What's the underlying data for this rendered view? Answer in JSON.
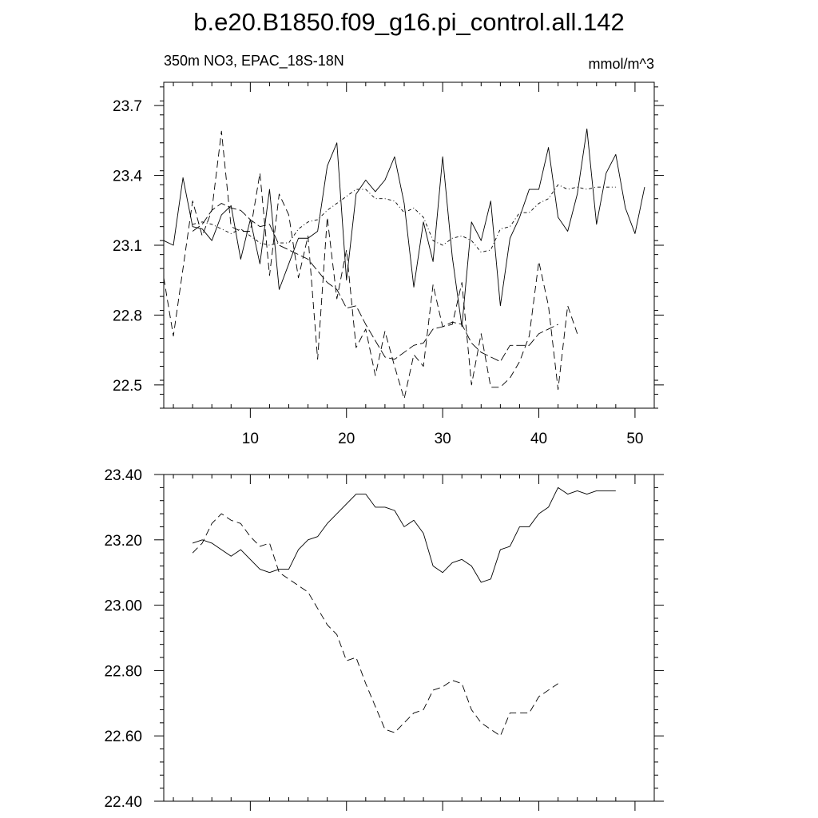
{
  "title": "b.e20.B1850.f09_g16.pi_control.all.142",
  "chart_data": [
    {
      "type": "line",
      "left_subtitle": "350m NO3, EPAC_18S-18N",
      "right_subtitle": "mmol/m^3",
      "xlim": [
        1,
        52
      ],
      "ylim": [
        22.4,
        23.8
      ],
      "xticks": [
        10,
        20,
        30,
        40,
        50
      ],
      "xtick_labels": [
        "10",
        "20",
        "30",
        "40",
        "50"
      ],
      "yticks": [
        22.5,
        22.8,
        23.1,
        23.4,
        23.7
      ],
      "ytick_labels": [
        "22.5",
        "22.8",
        "23.1",
        "23.4",
        "23.7"
      ],
      "series": [
        {
          "style": "solid",
          "x": [
            1,
            2,
            3,
            4,
            5,
            6,
            7,
            8,
            9,
            10,
            11,
            12,
            13,
            14,
            15,
            16,
            17,
            18,
            19,
            20,
            21,
            22,
            23,
            24,
            25,
            26,
            27,
            28,
            29,
            30,
            31,
            32,
            33,
            34,
            35,
            36,
            37,
            38,
            39,
            40,
            41,
            42,
            43,
            44,
            45,
            46,
            47,
            48,
            49,
            50,
            51
          ],
          "y": [
            23.12,
            23.1,
            23.39,
            23.18,
            23.17,
            23.12,
            23.23,
            23.27,
            23.04,
            23.21,
            23.02,
            23.34,
            22.91,
            23.02,
            23.13,
            23.13,
            23.16,
            23.44,
            23.54,
            22.95,
            23.32,
            23.38,
            23.33,
            23.38,
            23.48,
            23.28,
            22.92,
            23.2,
            23.03,
            23.48,
            23.05,
            22.75,
            23.2,
            23.12,
            23.29,
            22.84,
            23.13,
            23.22,
            23.34,
            23.34,
            23.52,
            23.22,
            23.16,
            23.32,
            23.6,
            23.19,
            23.41,
            23.49,
            23.26,
            23.15,
            23.35
          ]
        },
        {
          "style": "dashed",
          "x": [
            1,
            2,
            3,
            4,
            5,
            6,
            7,
            8,
            9,
            10,
            11,
            12,
            13,
            14,
            15,
            16,
            17,
            18,
            19,
            20,
            21,
            22,
            23,
            24,
            25,
            26,
            27,
            28,
            29,
            30,
            31,
            32,
            33,
            34,
            35,
            36,
            37,
            38,
            39,
            40,
            41,
            42,
            43,
            44
          ],
          "y": [
            22.96,
            22.71,
            23.0,
            23.29,
            23.14,
            23.25,
            23.59,
            23.18,
            23.16,
            23.16,
            23.41,
            22.97,
            23.32,
            23.23,
            22.96,
            23.14,
            22.61,
            23.22,
            22.87,
            23.08,
            22.66,
            22.74,
            22.54,
            22.73,
            22.58,
            22.44,
            22.63,
            22.58,
            22.93,
            22.75,
            22.76,
            22.94,
            22.5,
            22.72,
            22.49,
            22.49,
            22.53,
            22.6,
            22.71,
            23.03,
            22.84,
            22.48,
            22.84,
            22.72
          ]
        },
        {
          "style": "dash-dot",
          "x": [
            4,
            5,
            6,
            7,
            8,
            9,
            10,
            11,
            12,
            13,
            14,
            15,
            16,
            17,
            18,
            19,
            20,
            21,
            22,
            23,
            24,
            25,
            26,
            27,
            28,
            29,
            30,
            31,
            32,
            33,
            34,
            35,
            36,
            37,
            38,
            39,
            40,
            41,
            42,
            43,
            44,
            45,
            46,
            47,
            48
          ],
          "y": [
            23.19,
            23.2,
            23.19,
            23.17,
            23.15,
            23.17,
            23.14,
            23.11,
            23.1,
            23.11,
            23.11,
            23.17,
            23.2,
            23.21,
            23.25,
            23.28,
            23.31,
            23.34,
            23.34,
            23.3,
            23.3,
            23.29,
            23.24,
            23.26,
            23.22,
            23.12,
            23.1,
            23.13,
            23.14,
            23.12,
            23.07,
            23.08,
            23.17,
            23.18,
            23.24,
            23.24,
            23.28,
            23.3,
            23.36,
            23.34,
            23.35,
            23.34,
            23.35,
            23.35,
            23.35
          ]
        },
        {
          "style": "long-dash",
          "x": [
            4,
            5,
            6,
            7,
            8,
            9,
            10,
            11,
            12,
            13,
            14,
            15,
            16,
            17,
            18,
            19,
            20,
            21,
            22,
            23,
            24,
            25,
            26,
            27,
            28,
            29,
            30,
            31,
            32,
            33,
            34,
            35,
            36,
            37,
            38,
            39,
            40,
            41,
            42
          ],
          "y": [
            23.16,
            23.19,
            23.25,
            23.28,
            23.26,
            23.25,
            23.21,
            23.18,
            23.19,
            23.1,
            23.08,
            23.06,
            23.04,
            22.99,
            22.94,
            22.91,
            22.83,
            22.84,
            22.76,
            22.69,
            22.62,
            22.61,
            22.64,
            22.67,
            22.68,
            22.74,
            22.75,
            22.77,
            22.76,
            22.68,
            22.64,
            22.62,
            22.6,
            22.67,
            22.67,
            22.67,
            22.72,
            22.74,
            22.76
          ]
        }
      ]
    },
    {
      "type": "line",
      "xlim": [
        1,
        52
      ],
      "ylim": [
        22.4,
        23.4
      ],
      "xticks": [
        10,
        20,
        30,
        40,
        50
      ],
      "yticks": [
        22.4,
        22.6,
        22.8,
        23.0,
        23.2,
        23.4
      ],
      "ytick_labels": [
        "22.40",
        "22.60",
        "22.80",
        "23.00",
        "23.20",
        "23.40"
      ],
      "series": [
        {
          "style": "solid",
          "x": [
            4,
            5,
            6,
            7,
            8,
            9,
            10,
            11,
            12,
            13,
            14,
            15,
            16,
            17,
            18,
            19,
            20,
            21,
            22,
            23,
            24,
            25,
            26,
            27,
            28,
            29,
            30,
            31,
            32,
            33,
            34,
            35,
            36,
            37,
            38,
            39,
            40,
            41,
            42,
            43,
            44,
            45,
            46,
            47,
            48
          ],
          "y": [
            23.19,
            23.2,
            23.19,
            23.17,
            23.15,
            23.17,
            23.14,
            23.11,
            23.1,
            23.11,
            23.11,
            23.17,
            23.2,
            23.21,
            23.25,
            23.28,
            23.31,
            23.34,
            23.34,
            23.3,
            23.3,
            23.29,
            23.24,
            23.26,
            23.22,
            23.12,
            23.1,
            23.13,
            23.14,
            23.12,
            23.07,
            23.08,
            23.17,
            23.18,
            23.24,
            23.24,
            23.28,
            23.3,
            23.36,
            23.34,
            23.35,
            23.34,
            23.35,
            23.35,
            23.35
          ]
        },
        {
          "style": "dashed",
          "x": [
            4,
            5,
            6,
            7,
            8,
            9,
            10,
            11,
            12,
            13,
            14,
            15,
            16,
            17,
            18,
            19,
            20,
            21,
            22,
            23,
            24,
            25,
            26,
            27,
            28,
            29,
            30,
            31,
            32,
            33,
            34,
            35,
            36,
            37,
            38,
            39,
            40,
            41,
            42
          ],
          "y": [
            23.16,
            23.19,
            23.25,
            23.28,
            23.26,
            23.25,
            23.21,
            23.18,
            23.19,
            23.1,
            23.08,
            23.06,
            23.04,
            22.99,
            22.94,
            22.91,
            22.83,
            22.84,
            22.76,
            22.69,
            22.62,
            22.61,
            22.64,
            22.67,
            22.68,
            22.74,
            22.75,
            22.77,
            22.76,
            22.68,
            22.64,
            22.62,
            22.6,
            22.67,
            22.67,
            22.67,
            22.72,
            22.74,
            22.76
          ]
        }
      ]
    }
  ]
}
